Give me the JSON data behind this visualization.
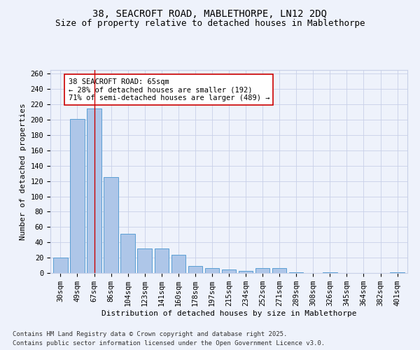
{
  "title1": "38, SEACROFT ROAD, MABLETHORPE, LN12 2DQ",
  "title2": "Size of property relative to detached houses in Mablethorpe",
  "xlabel": "Distribution of detached houses by size in Mablethorpe",
  "ylabel": "Number of detached properties",
  "categories": [
    "30sqm",
    "49sqm",
    "67sqm",
    "86sqm",
    "104sqm",
    "123sqm",
    "141sqm",
    "160sqm",
    "178sqm",
    "197sqm",
    "215sqm",
    "234sqm",
    "252sqm",
    "271sqm",
    "289sqm",
    "308sqm",
    "326sqm",
    "345sqm",
    "364sqm",
    "382sqm",
    "401sqm"
  ],
  "values": [
    20,
    201,
    215,
    125,
    51,
    32,
    32,
    24,
    9,
    6,
    5,
    3,
    6,
    6,
    1,
    0,
    1,
    0,
    0,
    0,
    1
  ],
  "bar_color": "#aec6e8",
  "bar_edge_color": "#5a9fd4",
  "ylim": [
    0,
    265
  ],
  "yticks": [
    0,
    20,
    40,
    60,
    80,
    100,
    120,
    140,
    160,
    180,
    200,
    220,
    240,
    260
  ],
  "property_bin_index": 2,
  "vline_color": "#cc0000",
  "annotation_text": "38 SEACROFT ROAD: 65sqm\n← 28% of detached houses are smaller (192)\n71% of semi-detached houses are larger (489) →",
  "annotation_box_color": "#ffffff",
  "annotation_box_edge": "#cc0000",
  "footnote1": "Contains HM Land Registry data © Crown copyright and database right 2025.",
  "footnote2": "Contains public sector information licensed under the Open Government Licence v3.0.",
  "bg_color": "#eef2fb",
  "grid_color": "#c8d0e8",
  "title1_fontsize": 10,
  "title2_fontsize": 9,
  "axis_label_fontsize": 8,
  "tick_fontsize": 7.5,
  "annotation_fontsize": 7.5,
  "footnote_fontsize": 6.5
}
